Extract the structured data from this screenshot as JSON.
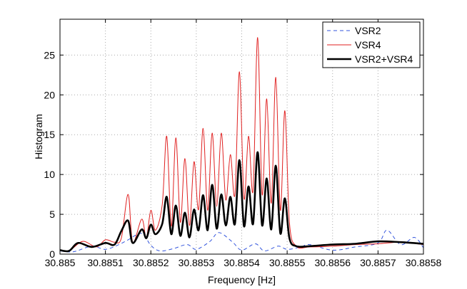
{
  "chart_data": {
    "type": "line",
    "xlabel": "Frequency [Hz]",
    "ylabel": "Histogram",
    "xlim": [
      30.885,
      30.8858
    ],
    "ylim": [
      0,
      29.5
    ],
    "x_ticks": [
      30.885,
      30.8851,
      30.8852,
      30.8853,
      30.8854,
      30.8855,
      30.8856,
      30.8857,
      30.8858
    ],
    "x_tick_labels": [
      "30.885",
      "30.8851",
      "30.8852",
      "30.8853",
      "30.8854",
      "30.8855",
      "30.8856",
      "30.8857",
      "30.8858"
    ],
    "y_ticks": [
      0,
      5,
      10,
      15,
      20,
      25
    ],
    "y_tick_labels": [
      "0",
      "5",
      "10",
      "15",
      "20",
      "25"
    ],
    "grid": true,
    "legend_position": "top-right",
    "series": [
      {
        "name": "VSR2",
        "color": "#3355dd",
        "style": "dashed",
        "x": [
          30.885,
          30.88503,
          30.88507,
          30.8851,
          30.88513,
          30.88515,
          30.88518,
          30.8852,
          30.88522,
          30.88525,
          30.88528,
          30.8853,
          30.88533,
          30.88535,
          30.88538,
          30.8854,
          30.88543,
          30.88545,
          30.88548,
          30.8855,
          30.88553,
          30.88555,
          30.8856,
          30.88565,
          30.8857,
          30.88572,
          30.88575,
          30.88578,
          30.8858
        ],
        "y": [
          0.4,
          0.3,
          1.0,
          0.6,
          1.2,
          1.8,
          2.6,
          1.1,
          0.4,
          0.7,
          1.2,
          0.6,
          1.6,
          2.7,
          1.5,
          0.5,
          1.3,
          0.4,
          1.0,
          0.6,
          0.9,
          1.2,
          0.5,
          0.9,
          1.4,
          3.0,
          1.2,
          2.1,
          0.8
        ]
      },
      {
        "name": "VSR4",
        "color": "#e02020",
        "style": "solid",
        "x": [
          30.885,
          30.88502,
          30.88505,
          30.88508,
          30.8851,
          30.88512,
          30.885135,
          30.88515,
          30.88516,
          30.88518,
          30.88519,
          30.8852,
          30.88521,
          30.885225,
          30.885235,
          30.885245,
          30.885255,
          30.885265,
          30.885275,
          30.885285,
          30.885295,
          30.885305,
          30.885315,
          30.885325,
          30.885335,
          30.885345,
          30.885355,
          30.885365,
          30.885375,
          30.885385,
          30.885395,
          30.885405,
          30.885415,
          30.885425,
          30.885435,
          30.885445,
          30.885455,
          30.885465,
          30.885475,
          30.885485,
          30.885495,
          30.885505,
          30.88552,
          30.88555,
          30.8856,
          30.88565,
          30.8857,
          30.88575,
          30.8858
        ],
        "y": [
          0.5,
          0.4,
          1.6,
          0.9,
          1.8,
          1.5,
          2.0,
          7.5,
          1.5,
          4.4,
          2.0,
          5.5,
          3.0,
          6.2,
          14.8,
          3.5,
          14.6,
          4.0,
          12.0,
          3.6,
          11.6,
          5.6,
          15.8,
          5.5,
          15.2,
          6.0,
          15.2,
          6.8,
          12.5,
          7.5,
          22.9,
          7.0,
          14.8,
          8.0,
          27.2,
          7.5,
          19.5,
          6.4,
          22.2,
          5.5,
          18.0,
          4.0,
          1.0,
          0.9,
          1.0,
          1.2,
          1.3,
          1.5,
          1.2
        ]
      },
      {
        "name": "VSR2+VSR4",
        "color": "#000000",
        "style": "bold",
        "x": [
          30.885,
          30.88502,
          30.88504,
          30.88507,
          30.8851,
          30.88512,
          30.885135,
          30.88515,
          30.88516,
          30.88518,
          30.88519,
          30.8852,
          30.88521,
          30.885225,
          30.885235,
          30.885245,
          30.885255,
          30.885265,
          30.885275,
          30.885285,
          30.885295,
          30.885305,
          30.885315,
          30.885325,
          30.885335,
          30.885345,
          30.885355,
          30.885365,
          30.885375,
          30.885385,
          30.885395,
          30.885405,
          30.885415,
          30.885425,
          30.885435,
          30.885445,
          30.885455,
          30.885465,
          30.885475,
          30.885485,
          30.885495,
          30.885505,
          30.88552,
          30.88555,
          30.8856,
          30.88565,
          30.8857,
          30.88575,
          30.8858
        ],
        "y": [
          0.5,
          0.4,
          1.4,
          0.9,
          1.4,
          1.2,
          2.9,
          4.2,
          1.4,
          3.1,
          2.0,
          3.7,
          2.5,
          3.8,
          7.2,
          2.5,
          6.1,
          2.3,
          5.2,
          2.1,
          5.6,
          3.0,
          7.4,
          3.0,
          8.7,
          3.2,
          7.5,
          3.6,
          7.2,
          3.8,
          11.8,
          3.5,
          8.5,
          3.8,
          12.8,
          3.6,
          9.5,
          3.1,
          11.1,
          2.6,
          7.0,
          2.0,
          1.0,
          1.0,
          1.2,
          1.3,
          1.6,
          1.5,
          1.3
        ]
      }
    ]
  }
}
